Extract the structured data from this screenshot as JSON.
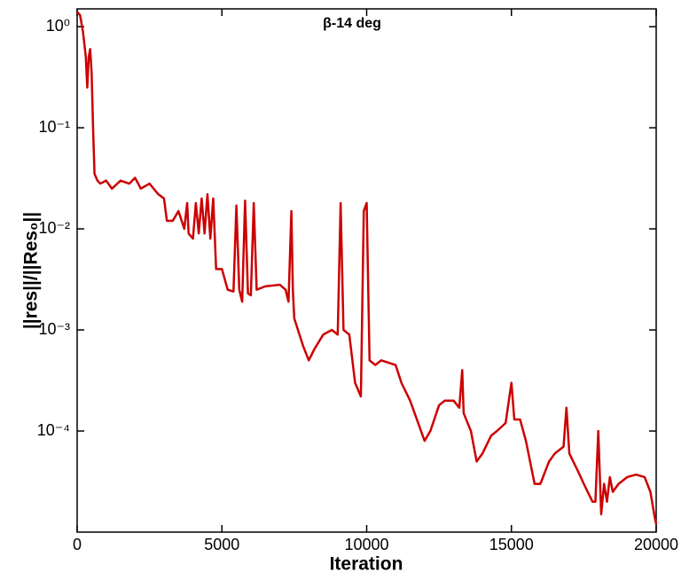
{
  "chart_data": {
    "type": "line",
    "title": "β-14 deg",
    "x_label": "Iteration",
    "y_label": "||res||/||Res₀||",
    "log_y": true,
    "xlim": [
      0,
      20000
    ],
    "ylim": [
      1e-05,
      1.5
    ],
    "xticks": [
      0,
      5000,
      10000,
      15000,
      20000
    ],
    "yticks": [
      {
        "value": 1,
        "label": "10⁰"
      },
      {
        "value": 0.1,
        "label": "10⁻¹"
      },
      {
        "value": 0.01,
        "label": "10⁻²"
      },
      {
        "value": 0.001,
        "label": "10⁻³"
      },
      {
        "value": 0.0001,
        "label": "10⁻⁴"
      }
    ],
    "series": [
      {
        "color": "#cc0000",
        "x": [
          0,
          100,
          200,
          300,
          350,
          400,
          450,
          500,
          550,
          600,
          700,
          800,
          1000,
          1200,
          1500,
          1800,
          2000,
          2200,
          2500,
          2800,
          3000,
          3100,
          3300,
          3500,
          3700,
          3800,
          3850,
          4000,
          4100,
          4200,
          4300,
          4400,
          4500,
          4600,
          4700,
          4800,
          5000,
          5200,
          5400,
          5500,
          5600,
          5700,
          5800,
          5900,
          6000,
          6100,
          6200,
          6500,
          7000,
          7200,
          7300,
          7400,
          7450,
          7500,
          7800,
          8000,
          8200,
          8500,
          8800,
          9000,
          9100,
          9200,
          9400,
          9600,
          9800,
          9900,
          10000,
          10100,
          10300,
          10500,
          11000,
          11200,
          11500,
          12000,
          12200,
          12500,
          12700,
          13000,
          13200,
          13300,
          13350,
          13600,
          13800,
          14000,
          14300,
          14500,
          14800,
          15000,
          15100,
          15300,
          15500,
          15800,
          16000,
          16300,
          16500,
          16800,
          16900,
          17000,
          17300,
          17500,
          17800,
          17900,
          18000,
          18100,
          18200,
          18300,
          18400,
          18500,
          18700,
          19000,
          19300,
          19600,
          19800,
          19950,
          20000
        ],
        "values": [
          1.4,
          1.3,
          0.9,
          0.5,
          0.25,
          0.5,
          0.6,
          0.35,
          0.1,
          0.035,
          0.03,
          0.028,
          0.03,
          0.025,
          0.03,
          0.028,
          0.032,
          0.025,
          0.028,
          0.022,
          0.02,
          0.012,
          0.012,
          0.015,
          0.01,
          0.018,
          0.009,
          0.008,
          0.018,
          0.009,
          0.02,
          0.009,
          0.022,
          0.008,
          0.02,
          0.004,
          0.004,
          0.0025,
          0.0024,
          0.017,
          0.0025,
          0.0019,
          0.019,
          0.0023,
          0.0022,
          0.018,
          0.0025,
          0.0027,
          0.0028,
          0.0025,
          0.0019,
          0.015,
          0.0025,
          0.0013,
          0.0007,
          0.0005,
          0.00065,
          0.0009,
          0.001,
          0.0009,
          0.018,
          0.001,
          0.0009,
          0.0003,
          0.00022,
          0.015,
          0.018,
          0.0005,
          0.00045,
          0.0005,
          0.00045,
          0.0003,
          0.0002,
          8e-05,
          0.0001,
          0.00018,
          0.0002,
          0.0002,
          0.00017,
          0.0004,
          0.00015,
          0.0001,
          5e-05,
          6e-05,
          9e-05,
          0.0001,
          0.00012,
          0.0003,
          0.00013,
          0.00013,
          8e-05,
          3e-05,
          3e-05,
          5e-05,
          6e-05,
          7e-05,
          0.00017,
          6e-05,
          4e-05,
          3e-05,
          2e-05,
          2e-05,
          0.0001,
          1.5e-05,
          3e-05,
          2e-05,
          3.5e-05,
          2.5e-05,
          3e-05,
          3.5e-05,
          3.7e-05,
          3.5e-05,
          2.5e-05,
          1.4e-05,
          1.2e-05
        ]
      }
    ]
  }
}
